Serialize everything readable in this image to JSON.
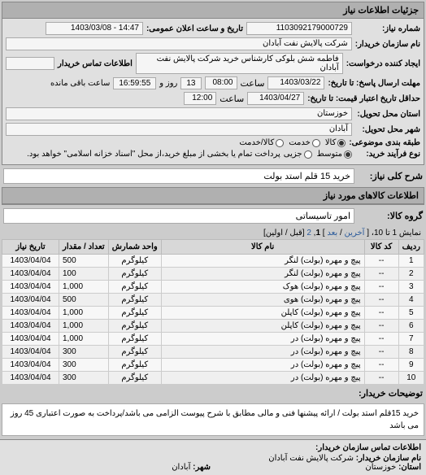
{
  "panel1": {
    "title": "جزئیات اطلاعات نیاز",
    "req_no_label": "شماره نیاز:",
    "req_no": "1103092179000729",
    "announce_label": "تاریخ و ساعت اعلان عمومی:",
    "announce_val": "14:47 - 1403/03/08",
    "buyer_label": "نام سازمان خریدار:",
    "buyer_val": "شرکت پالایش نفت آبادان",
    "requester_label": "ایجاد کننده درخواست:",
    "requester_val": "فاطمه شش بلوکی کارشناس خرید شرکت پالایش نفت آبادان",
    "contact_label": "اطلاعات تماس خریدار",
    "deadline_send_label": "مهلت ارسال پاسخ: تا تاریخ:",
    "deadline_send_date": "1403/03/22",
    "time_label": "ساعت",
    "deadline_send_time": "08:00",
    "days_remaining": "13",
    "day_word": "روز و",
    "time_remaining": "16:59:55",
    "remaining_word": "ساعت باقی مانده",
    "valid_label": "حداقل تاریخ اعتبار قیمت: تا تاریخ:",
    "valid_date": "1403/04/27",
    "valid_time": "12:00",
    "province_label": "استان محل تحویل:",
    "province_val": "خوزستان",
    "city_label": "شهر محل تحویل:",
    "city_val": "آبادان",
    "budget_label": "طبقه بندی موضوعی:",
    "budget_opts": {
      "a": "کالا",
      "b": "خدمت",
      "c": "کالا/خدمت"
    },
    "process_label": "نوع فرآیند خرید:",
    "process_opts": {
      "a": "متوسط",
      "b": "جزیی"
    },
    "process_note": "پرداخت تمام یا بخشی از مبلغ خرید،از محل \"اسناد خزانه اسلامی\" خواهد بود."
  },
  "summary": {
    "label": "شرح کلی نیاز:",
    "val": "خرید 15 قلم استد بولت"
  },
  "items_header": "اطلاعات کالاهای مورد نیاز",
  "group": {
    "label": "گروه کالا:",
    "val": "امور تاسیساتی"
  },
  "pager": {
    "prefix": "نمایش 1 تا 10، [",
    "first": "آخرین",
    "sep": " / ",
    "next": "بعد",
    "suffix": "] ",
    "p1": "1",
    "p2": "2",
    "tail": " [قبل / اولین]"
  },
  "table": {
    "cols": [
      "ردیف",
      "کد کالا",
      "نام کالا",
      "واحد شمارش",
      "تعداد / مقدار",
      "تاریخ نیاز"
    ],
    "rows": [
      [
        "1",
        "--",
        "پیچ و مهره (بولت) لنگر",
        "کیلوگرم",
        "500",
        "1403/04/04"
      ],
      [
        "2",
        "--",
        "پیچ و مهره (بولت) لنگر",
        "کیلوگرم",
        "100",
        "1403/04/04"
      ],
      [
        "3",
        "--",
        "پیچ و مهره (بولت) هوک",
        "کیلوگرم",
        "1,000",
        "1403/04/04"
      ],
      [
        "4",
        "--",
        "پیچ و مهره (بولت) هوی",
        "کیلوگرم",
        "500",
        "1403/04/04"
      ],
      [
        "5",
        "--",
        "پیچ و مهره (بولت) کاپلن",
        "کیلوگرم",
        "1,000",
        "1403/04/04"
      ],
      [
        "6",
        "--",
        "پیچ و مهره (بولت) کاپلن",
        "کیلوگرم",
        "1,000",
        "1403/04/04"
      ],
      [
        "7",
        "--",
        "پیچ و مهره (بولت) در",
        "کیلوگرم",
        "1,000",
        "1403/04/04"
      ],
      [
        "8",
        "--",
        "پیچ و مهره (بولت) در",
        "کیلوگرم",
        "300",
        "1403/04/04"
      ],
      [
        "9",
        "--",
        "پیچ و مهره (بولت) در",
        "کیلوگرم",
        "300",
        "1403/04/04"
      ],
      [
        "10",
        "--",
        "پیچ و مهره (بولت) در",
        "کیلوگرم",
        "300",
        "1403/04/04"
      ]
    ]
  },
  "desc": {
    "label": "توضیحات خریدار:",
    "text": "خرید 15قلم استد بولت / ارائه پیشنها فنی و مالی مطابق با شرح پیوست الزامی می باشد/پرداخت به صورت اعتباری 45 روز می باشد"
  },
  "org": {
    "header": "اطلاعات تماس سازمان خریدار:",
    "name_label": "نام سازمان خریدار:",
    "name_val": "شرکت پالایش نفت آبادان",
    "province_label": "استان:",
    "province_val": "خوزستان",
    "city_label": "شهر:",
    "city_val": "آبادان"
  }
}
